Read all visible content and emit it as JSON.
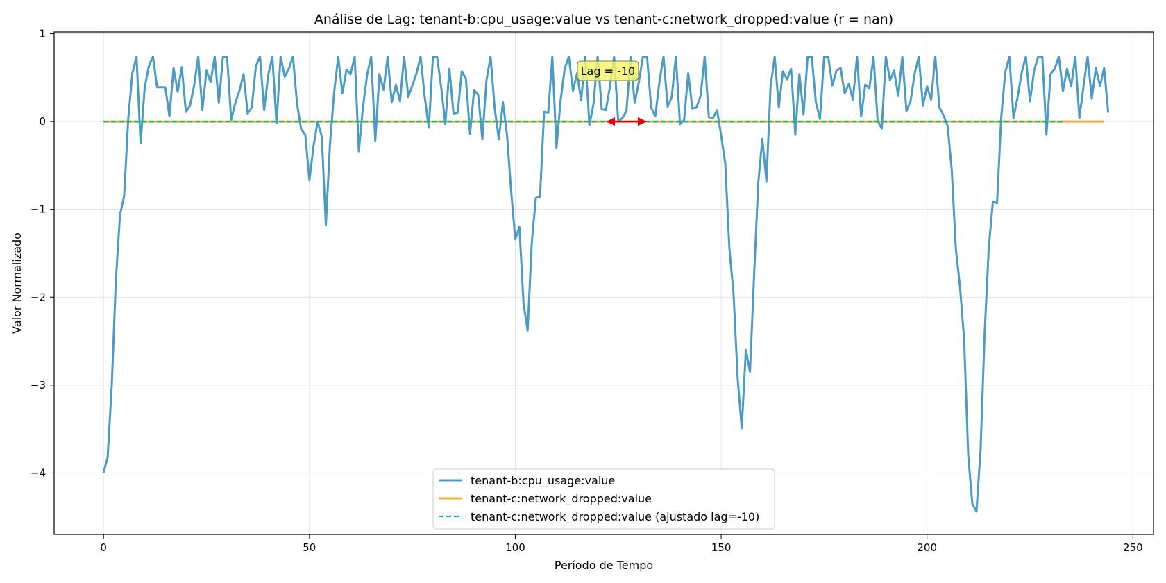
{
  "chart_data": {
    "type": "line",
    "title": "Análise de Lag: tenant-b:cpu_usage:value vs tenant-c:network_dropped:value (r = nan)",
    "xlabel": "Período de Tempo",
    "ylabel": "Valor Normalizado",
    "xlim": [
      -12,
      255
    ],
    "ylim": [
      -4.7,
      1.02
    ],
    "xticks": [
      0,
      50,
      100,
      150,
      200,
      250
    ],
    "yticks": [
      1,
      0,
      -1,
      -2,
      -3,
      -4
    ],
    "xtick_labels": [
      "0",
      "50",
      "100",
      "150",
      "200",
      "250"
    ],
    "ytick_labels": [
      "1",
      "0",
      "−1",
      "−2",
      "−3",
      "−4"
    ],
    "grid": true,
    "legend_position": "bottom-center",
    "annotation": {
      "text": "Lag = -10",
      "x": 122.5,
      "y": 0.57,
      "arrow_from_x": 122,
      "arrow_to_x": 132,
      "arrow_y": 0,
      "box_color": "#f5f56a",
      "arrow_color": "#e3000b"
    },
    "series": [
      {
        "name": "tenant-b:cpu_usage:value",
        "color": "#4b9bc7",
        "style": "solid",
        "x_start": 0,
        "values": [
          -4.0,
          -3.82,
          -3.0,
          -1.8,
          -1.06,
          -0.85,
          0.03,
          0.55,
          0.74,
          -0.25,
          0.39,
          0.63,
          0.74,
          0.39,
          0.39,
          0.39,
          0.06,
          0.61,
          0.34,
          0.62,
          0.11,
          0.18,
          0.41,
          0.74,
          0.13,
          0.58,
          0.45,
          0.74,
          0.21,
          0.74,
          0.74,
          0.02,
          0.21,
          0.35,
          0.54,
          0.09,
          0.16,
          0.63,
          0.74,
          0.13,
          0.53,
          0.74,
          -0.02,
          0.74,
          0.51,
          0.6,
          0.74,
          0.2,
          -0.09,
          -0.15,
          -0.67,
          -0.28,
          0.0,
          -0.17,
          -1.18,
          -0.25,
          0.33,
          0.74,
          0.32,
          0.59,
          0.54,
          0.74,
          -0.34,
          0.16,
          0.53,
          0.74,
          -0.22,
          0.54,
          0.36,
          0.74,
          0.22,
          0.42,
          0.23,
          0.74,
          0.28,
          0.41,
          0.55,
          0.74,
          0.28,
          -0.07,
          0.74,
          0.74,
          0.39,
          -0.03,
          0.6,
          0.09,
          0.1,
          0.57,
          0.49,
          -0.14,
          0.36,
          0.3,
          -0.2,
          0.47,
          0.74,
          0.15,
          -0.2,
          0.22,
          -0.16,
          -0.8,
          -1.34,
          -1.2,
          -2.07,
          -2.38,
          -1.38,
          -0.87,
          -0.86,
          0.11,
          0.1,
          0.74,
          -0.3,
          0.24,
          0.6,
          0.74,
          0.35,
          0.55,
          0.24,
          0.74,
          -0.04,
          0.2,
          0.74,
          0.14,
          0.13,
          0.4,
          0.74,
          0.0,
          0.04,
          0.12,
          0.74,
          0.21,
          0.45,
          0.74,
          0.74,
          0.16,
          0.06,
          0.45,
          0.74,
          0.17,
          0.28,
          0.74,
          -0.03,
          0.02,
          0.55,
          0.15,
          0.16,
          0.29,
          0.74,
          0.05,
          0.04,
          0.13,
          -0.16,
          -0.48,
          -1.45,
          -1.95,
          -2.92,
          -3.49,
          -2.6,
          -2.85,
          -1.75,
          -0.7,
          -0.2,
          -0.68,
          0.4,
          0.74,
          0.16,
          0.57,
          0.48,
          0.6,
          -0.15,
          0.54,
          0.08,
          0.74,
          0.74,
          0.22,
          0.03,
          0.74,
          0.74,
          0.41,
          0.58,
          0.61,
          0.32,
          0.43,
          0.25,
          0.74,
          0.06,
          0.42,
          0.38,
          0.74,
          0.01,
          -0.08,
          0.74,
          0.47,
          0.58,
          0.29,
          0.74,
          0.12,
          0.23,
          0.55,
          0.74,
          0.18,
          0.4,
          0.25,
          0.74,
          0.16,
          0.07,
          -0.05,
          -0.55,
          -1.45,
          -1.88,
          -2.47,
          -3.8,
          -4.35,
          -4.44,
          -3.74,
          -2.4,
          -1.43,
          -0.91,
          -0.93,
          0.04,
          0.56,
          0.74,
          0.04,
          0.28,
          0.56,
          0.74,
          0.23,
          0.58,
          0.74,
          0.74,
          -0.15,
          0.54,
          0.6,
          0.74,
          0.35,
          0.6,
          0.4,
          0.74,
          0.04,
          0.4,
          0.74,
          0.26,
          0.61,
          0.4,
          0.61,
          0.1
        ]
      },
      {
        "name": "tenant-c:network_dropped:value",
        "color": "#f0ab42",
        "style": "solid",
        "x_start": 0,
        "x_end": 243,
        "constant": 0
      },
      {
        "name": "tenant-c:network_dropped:value (ajustado lag=-10)",
        "color": "#1aae7a",
        "style": "dashed",
        "x_start": 0,
        "x_end": 233,
        "constant": 0
      }
    ]
  }
}
